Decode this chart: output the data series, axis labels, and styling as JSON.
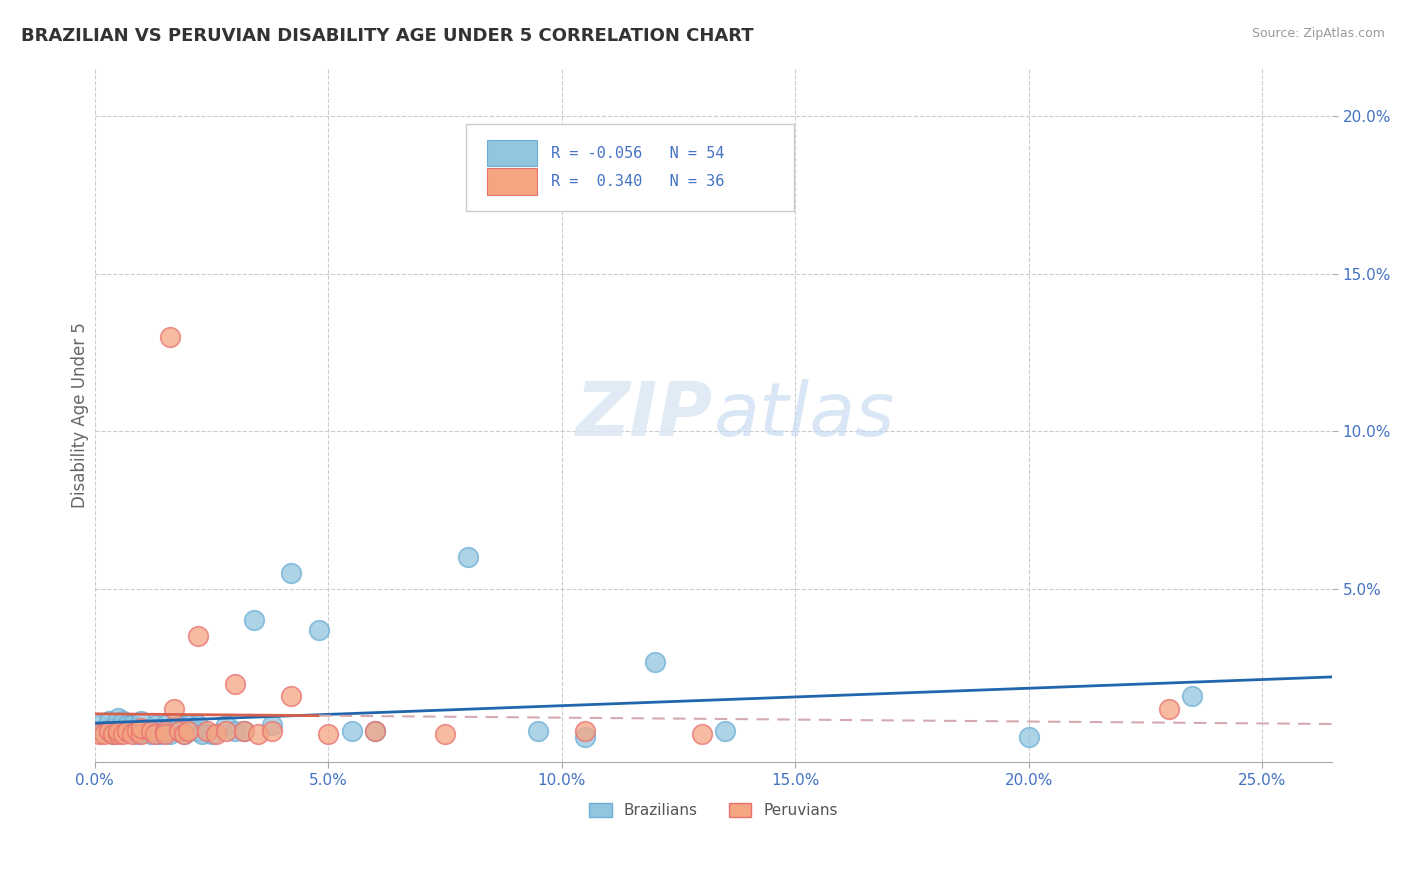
{
  "title": "BRAZILIAN VS PERUVIAN DISABILITY AGE UNDER 5 CORRELATION CHART",
  "source": "Source: ZipAtlas.com",
  "ylabel": "Disability Age Under 5",
  "xlim": [
    0.0,
    0.265
  ],
  "ylim": [
    -0.005,
    0.215
  ],
  "xtick_vals": [
    0.0,
    0.05,
    0.1,
    0.15,
    0.2,
    0.25
  ],
  "xtick_labels": [
    "0.0%",
    "5.0%",
    "10.0%",
    "15.0%",
    "20.0%",
    "25.0%"
  ],
  "ytick_vals": [
    0.05,
    0.1,
    0.15,
    0.2
  ],
  "ytick_labels": [
    "5.0%",
    "10.0%",
    "15.0%",
    "20.0%"
  ],
  "brazil_r": -0.056,
  "brazil_n": 54,
  "peru_r": 0.34,
  "peru_n": 36,
  "brazil_color": "#92c5de",
  "brazil_edge": "#6baed6",
  "peru_color": "#f4a582",
  "peru_edge": "#e87070",
  "brazil_line_color": "#2166ac",
  "peru_line_color": "#d6604d",
  "peru_dash_color": "#d4aab0",
  "grid_color": "#cccccc",
  "tick_color": "#4472c4",
  "background_color": "#ffffff",
  "brazil_scatter_x": [
    0.001,
    0.002,
    0.003,
    0.003,
    0.004,
    0.004,
    0.005,
    0.005,
    0.006,
    0.006,
    0.007,
    0.007,
    0.008,
    0.008,
    0.009,
    0.009,
    0.01,
    0.01,
    0.011,
    0.012,
    0.012,
    0.013,
    0.013,
    0.014,
    0.015,
    0.015,
    0.016,
    0.016,
    0.017,
    0.018,
    0.018,
    0.019,
    0.02,
    0.02,
    0.022,
    0.022,
    0.023,
    0.025,
    0.028,
    0.03,
    0.032,
    0.034,
    0.038,
    0.042,
    0.048,
    0.055,
    0.06,
    0.08,
    0.095,
    0.105,
    0.12,
    0.135,
    0.2,
    0.235
  ],
  "brazil_scatter_y": [
    0.007,
    0.005,
    0.005,
    0.008,
    0.004,
    0.006,
    0.005,
    0.009,
    0.006,
    0.008,
    0.005,
    0.007,
    0.005,
    0.007,
    0.004,
    0.006,
    0.005,
    0.008,
    0.005,
    0.004,
    0.006,
    0.005,
    0.007,
    0.004,
    0.005,
    0.007,
    0.004,
    0.006,
    0.006,
    0.005,
    0.007,
    0.004,
    0.005,
    0.007,
    0.005,
    0.007,
    0.004,
    0.004,
    0.007,
    0.005,
    0.005,
    0.04,
    0.007,
    0.055,
    0.037,
    0.005,
    0.005,
    0.06,
    0.005,
    0.003,
    0.027,
    0.005,
    0.003,
    0.016
  ],
  "peru_scatter_x": [
    0.001,
    0.002,
    0.003,
    0.004,
    0.005,
    0.005,
    0.006,
    0.007,
    0.008,
    0.009,
    0.01,
    0.01,
    0.012,
    0.013,
    0.015,
    0.015,
    0.016,
    0.017,
    0.018,
    0.019,
    0.02,
    0.022,
    0.024,
    0.026,
    0.028,
    0.03,
    0.032,
    0.035,
    0.038,
    0.042,
    0.05,
    0.06,
    0.075,
    0.105,
    0.13,
    0.23
  ],
  "peru_scatter_y": [
    0.004,
    0.004,
    0.005,
    0.004,
    0.004,
    0.005,
    0.004,
    0.005,
    0.004,
    0.005,
    0.004,
    0.006,
    0.005,
    0.004,
    0.005,
    0.004,
    0.13,
    0.012,
    0.005,
    0.004,
    0.005,
    0.035,
    0.005,
    0.004,
    0.005,
    0.02,
    0.005,
    0.004,
    0.005,
    0.016,
    0.004,
    0.005,
    0.004,
    0.005,
    0.004,
    0.012
  ]
}
